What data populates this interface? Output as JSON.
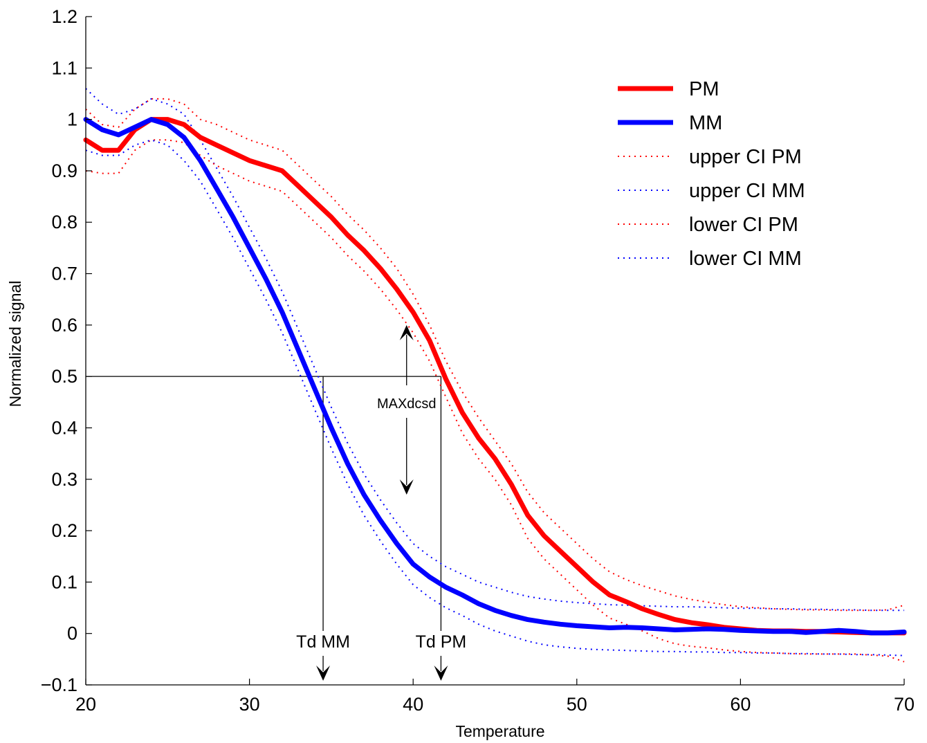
{
  "chart_data": {
    "type": "line",
    "title": "",
    "xlabel": "Temperature",
    "ylabel": "Normalized signal",
    "xlim": [
      20,
      70
    ],
    "ylim": [
      -0.1,
      1.2
    ],
    "xticks": [
      20,
      30,
      40,
      50,
      60,
      70
    ],
    "xtick_labels": [
      "20",
      "30",
      "40",
      "50",
      "60",
      "70"
    ],
    "yticks": [
      -0.1,
      0,
      0.1,
      0.2,
      0.3,
      0.4,
      0.5,
      0.6,
      0.7,
      0.8,
      0.9,
      1,
      1.1,
      1.2
    ],
    "ytick_labels": [
      "−0.1",
      "0",
      "0.1",
      "0.2",
      "0.3",
      "0.4",
      "0.5",
      "0.6",
      "0.7",
      "0.8",
      "0.9",
      "1",
      "1.1",
      "1.2"
    ],
    "grid": false,
    "legend_position": "top-right",
    "series": [
      {
        "name": "PM",
        "color": "#ff0000",
        "style": "solid",
        "x": [
          20,
          21,
          22,
          23,
          24,
          25,
          26,
          27,
          28,
          29,
          30,
          31,
          32,
          33,
          34,
          35,
          36,
          37,
          38,
          39,
          40,
          41,
          42,
          43,
          44,
          45,
          46,
          47,
          48,
          49,
          50,
          51,
          52,
          53,
          54,
          55,
          56,
          57,
          58,
          59,
          60,
          61,
          62,
          63,
          64,
          65,
          66,
          67,
          68,
          69,
          70
        ],
        "y": [
          0.96,
          0.94,
          0.94,
          0.98,
          1.0,
          1.0,
          0.99,
          0.965,
          0.95,
          0.935,
          0.92,
          0.91,
          0.9,
          0.87,
          0.84,
          0.81,
          0.775,
          0.745,
          0.71,
          0.67,
          0.625,
          0.57,
          0.495,
          0.43,
          0.38,
          0.34,
          0.29,
          0.23,
          0.19,
          0.16,
          0.13,
          0.1,
          0.075,
          0.062,
          0.048,
          0.037,
          0.027,
          0.021,
          0.017,
          0.012,
          0.009,
          0.006,
          0.005,
          0.005,
          0.004,
          0.004,
          0.003,
          0.002,
          0.001,
          0.001,
          0.001
        ]
      },
      {
        "name": "MM",
        "color": "#0000ff",
        "style": "solid",
        "x": [
          20,
          21,
          22,
          23,
          24,
          25,
          26,
          27,
          28,
          29,
          30,
          31,
          32,
          33,
          34,
          35,
          36,
          37,
          38,
          39,
          40,
          41,
          42,
          43,
          44,
          45,
          46,
          47,
          48,
          49,
          50,
          51,
          52,
          53,
          54,
          55,
          56,
          57,
          58,
          59,
          60,
          61,
          62,
          63,
          64,
          65,
          66,
          67,
          68,
          69,
          70
        ],
        "y": [
          1.0,
          0.98,
          0.97,
          0.985,
          1.0,
          0.99,
          0.965,
          0.92,
          0.865,
          0.81,
          0.75,
          0.69,
          0.625,
          0.55,
          0.475,
          0.4,
          0.33,
          0.27,
          0.22,
          0.175,
          0.135,
          0.11,
          0.09,
          0.075,
          0.058,
          0.045,
          0.035,
          0.027,
          0.022,
          0.018,
          0.015,
          0.013,
          0.011,
          0.012,
          0.011,
          0.009,
          0.007,
          0.008,
          0.009,
          0.008,
          0.006,
          0.005,
          0.004,
          0.004,
          0.002,
          0.004,
          0.006,
          0.004,
          0.001,
          0.001,
          0.003
        ]
      },
      {
        "name": "upper CI PM",
        "color": "#ff0000",
        "style": "dotted",
        "x": [
          20,
          21,
          22,
          23,
          24,
          25,
          26,
          27,
          28,
          29,
          30,
          31,
          32,
          33,
          34,
          35,
          36,
          37,
          38,
          39,
          40,
          41,
          42,
          43,
          44,
          45,
          46,
          47,
          48,
          49,
          50,
          51,
          52,
          53,
          54,
          55,
          56,
          57,
          58,
          59,
          60,
          61,
          62,
          63,
          64,
          65,
          66,
          67,
          68,
          69,
          70
        ],
        "y": [
          1.02,
          0.99,
          0.985,
          1.02,
          1.04,
          1.04,
          1.03,
          1.0,
          0.99,
          0.975,
          0.96,
          0.95,
          0.94,
          0.91,
          0.88,
          0.85,
          0.815,
          0.785,
          0.75,
          0.71,
          0.66,
          0.6,
          0.53,
          0.47,
          0.42,
          0.375,
          0.33,
          0.275,
          0.235,
          0.205,
          0.175,
          0.145,
          0.12,
          0.105,
          0.093,
          0.083,
          0.073,
          0.066,
          0.061,
          0.056,
          0.052,
          0.05,
          0.048,
          0.047,
          0.046,
          0.046,
          0.045,
          0.045,
          0.045,
          0.046,
          0.055
        ]
      },
      {
        "name": "upper CI MM",
        "color": "#0000ff",
        "style": "dotted",
        "x": [
          20,
          21,
          22,
          23,
          24,
          25,
          26,
          27,
          28,
          29,
          30,
          31,
          32,
          33,
          34,
          35,
          36,
          37,
          38,
          39,
          40,
          41,
          42,
          43,
          44,
          45,
          46,
          47,
          48,
          49,
          50,
          51,
          52,
          53,
          54,
          55,
          56,
          57,
          58,
          59,
          60,
          61,
          62,
          63,
          64,
          65,
          66,
          67,
          68,
          69,
          70
        ],
        "y": [
          1.06,
          1.03,
          1.01,
          1.02,
          1.04,
          1.03,
          1.01,
          0.96,
          0.905,
          0.85,
          0.79,
          0.73,
          0.665,
          0.59,
          0.515,
          0.44,
          0.37,
          0.31,
          0.26,
          0.215,
          0.175,
          0.15,
          0.13,
          0.115,
          0.1,
          0.09,
          0.08,
          0.072,
          0.067,
          0.063,
          0.06,
          0.058,
          0.056,
          0.055,
          0.054,
          0.053,
          0.052,
          0.052,
          0.051,
          0.05,
          0.049,
          0.049,
          0.048,
          0.048,
          0.047,
          0.047,
          0.046,
          0.046,
          0.045,
          0.045,
          0.045
        ]
      },
      {
        "name": "lower CI PM",
        "color": "#ff0000",
        "style": "dotted",
        "x": [
          20,
          21,
          22,
          23,
          24,
          25,
          26,
          27,
          28,
          29,
          30,
          31,
          32,
          33,
          34,
          35,
          36,
          37,
          38,
          39,
          40,
          41,
          42,
          43,
          44,
          45,
          46,
          47,
          48,
          49,
          50,
          51,
          52,
          53,
          54,
          55,
          56,
          57,
          58,
          59,
          60,
          61,
          62,
          63,
          64,
          65,
          66,
          67,
          68,
          69,
          70
        ],
        "y": [
          0.9,
          0.895,
          0.895,
          0.94,
          0.96,
          0.96,
          0.955,
          0.93,
          0.91,
          0.895,
          0.88,
          0.87,
          0.86,
          0.83,
          0.8,
          0.77,
          0.735,
          0.705,
          0.67,
          0.63,
          0.585,
          0.53,
          0.46,
          0.39,
          0.34,
          0.3,
          0.25,
          0.185,
          0.145,
          0.115,
          0.085,
          0.055,
          0.03,
          0.018,
          0.005,
          -0.01,
          -0.02,
          -0.025,
          -0.028,
          -0.032,
          -0.035,
          -0.037,
          -0.038,
          -0.039,
          -0.04,
          -0.04,
          -0.04,
          -0.04,
          -0.042,
          -0.044,
          -0.055
        ]
      },
      {
        "name": "lower CI MM",
        "color": "#0000ff",
        "style": "dotted",
        "x": [
          20,
          21,
          22,
          23,
          24,
          25,
          26,
          27,
          28,
          29,
          30,
          31,
          32,
          33,
          34,
          35,
          36,
          37,
          38,
          39,
          40,
          41,
          42,
          43,
          44,
          45,
          46,
          47,
          48,
          49,
          50,
          51,
          52,
          53,
          54,
          55,
          56,
          57,
          58,
          59,
          60,
          61,
          62,
          63,
          64,
          65,
          66,
          67,
          68,
          69,
          70
        ],
        "y": [
          0.94,
          0.93,
          0.93,
          0.95,
          0.96,
          0.95,
          0.92,
          0.88,
          0.825,
          0.77,
          0.71,
          0.65,
          0.585,
          0.51,
          0.435,
          0.36,
          0.29,
          0.23,
          0.18,
          0.135,
          0.095,
          0.07,
          0.05,
          0.035,
          0.018,
          0.005,
          -0.005,
          -0.015,
          -0.022,
          -0.026,
          -0.029,
          -0.031,
          -0.032,
          -0.033,
          -0.034,
          -0.035,
          -0.035,
          -0.036,
          -0.036,
          -0.037,
          -0.037,
          -0.038,
          -0.038,
          -0.039,
          -0.039,
          -0.04,
          -0.04,
          -0.041,
          -0.041,
          -0.042,
          -0.043
        ]
      }
    ],
    "annotations": {
      "threshold": 0.5,
      "td_mm": {
        "label": "Td MM",
        "x": 34.5
      },
      "td_pm": {
        "label": "Td PM",
        "x": 41.7
      },
      "maxdcsd": {
        "label": "MAXdcsd",
        "x": 39.6,
        "y_top": 0.6,
        "y_bottom": 0.27
      }
    }
  }
}
